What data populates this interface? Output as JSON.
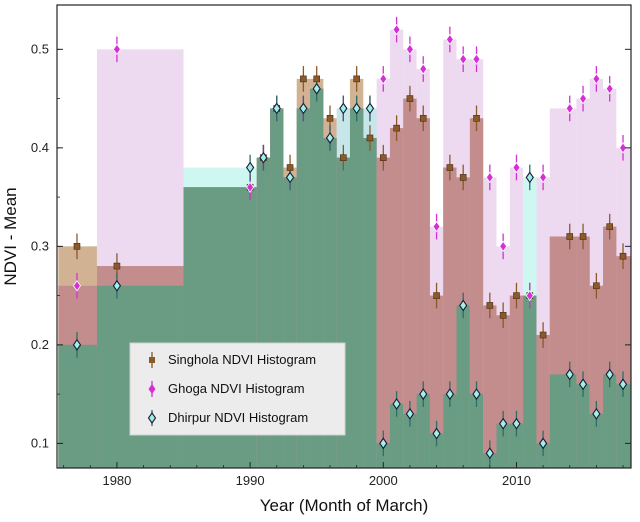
{
  "chart_data": {
    "type": "histogram-step-with-errorbars",
    "xlabel": "Year (Month of March)",
    "ylabel": "NDVI - Mean",
    "xlim": [
      1975.5,
      2018.6
    ],
    "ylim": [
      0.075,
      0.545
    ],
    "xticks": [
      1980,
      1990,
      2000,
      2010
    ],
    "yticks": [
      0.1,
      0.2,
      0.3,
      0.4,
      0.5
    ],
    "legend_position": "lower-left",
    "series": [
      {
        "name": "Singhola NDVI Histogram",
        "fill": "#c9a47f",
        "marker_color": "#8a5a2b",
        "marker": "square",
        "x": [
          1977,
          1980,
          1990,
          1991,
          1992,
          1993,
          1994,
          1995,
          1996,
          1997,
          1998,
          1999,
          2000,
          2001,
          2002,
          2003,
          2004,
          2005,
          2006,
          2007,
          2008,
          2009,
          2010,
          2011,
          2012,
          2014,
          2015,
          2016,
          2017,
          2018
        ],
        "y": [
          0.3,
          0.28,
          0.36,
          0.39,
          0.44,
          0.38,
          0.47,
          0.47,
          0.43,
          0.39,
          0.47,
          0.41,
          0.39,
          0.42,
          0.45,
          0.43,
          0.25,
          0.38,
          0.37,
          0.43,
          0.24,
          0.23,
          0.25,
          0.25,
          0.21,
          0.31,
          0.31,
          0.26,
          0.32,
          0.29
        ],
        "edges": [
          1975.6,
          1978.5,
          1985,
          1990.5,
          1991.5,
          1992.5,
          1993.5,
          1994.5,
          1995.5,
          1996.5,
          1997.5,
          1998.5,
          1999.5,
          2000.5,
          2001.5,
          2002.5,
          2003.5,
          2004.5,
          2005.5,
          2006.5,
          2007.5,
          2008.5,
          2009.5,
          2010.5,
          2011.5,
          2012.5,
          2014.5,
          2015.5,
          2016.5,
          2017.5,
          2018.6
        ]
      },
      {
        "name": "Ghoga NDVI Histogram",
        "fill": "#e3c2e6",
        "marker_color": "#d530d5",
        "marker": "diamond",
        "x": [
          1977,
          1980,
          1990,
          1991,
          1992,
          1993,
          1994,
          1995,
          1996,
          1997,
          1998,
          1999,
          2000,
          2001,
          2002,
          2003,
          2004,
          2005,
          2006,
          2007,
          2008,
          2009,
          2010,
          2011,
          2012,
          2014,
          2015,
          2016,
          2017,
          2018
        ],
        "y": [
          0.26,
          0.5,
          0.36,
          0.39,
          0.44,
          0.37,
          0.44,
          0.46,
          0.41,
          0.44,
          0.44,
          0.44,
          0.47,
          0.52,
          0.5,
          0.48,
          0.32,
          0.51,
          0.49,
          0.49,
          0.37,
          0.3,
          0.38,
          0.25,
          0.37,
          0.44,
          0.45,
          0.47,
          0.46,
          0.4
        ],
        "edges": [
          1975.6,
          1978.5,
          1985,
          1990.5,
          1991.5,
          1992.5,
          1993.5,
          1994.5,
          1995.5,
          1996.5,
          1997.5,
          1998.5,
          1999.5,
          2000.5,
          2001.5,
          2002.5,
          2003.5,
          2004.5,
          2005.5,
          2006.5,
          2007.5,
          2008.5,
          2009.5,
          2010.5,
          2011.5,
          2012.5,
          2014.5,
          2015.5,
          2016.5,
          2017.5,
          2018.6
        ]
      },
      {
        "name": "Dhirpur NDVI Histogram",
        "fill": "#a6f0e6",
        "marker_color": "#1a1a33",
        "marker": "diamond-outline",
        "x": [
          1977,
          1980,
          1990,
          1991,
          1992,
          1993,
          1994,
          1995,
          1996,
          1997,
          1998,
          1999,
          2000,
          2001,
          2002,
          2003,
          2004,
          2005,
          2006,
          2007,
          2008,
          2009,
          2010,
          2011,
          2012,
          2014,
          2015,
          2016,
          2017,
          2018
        ],
        "y": [
          0.2,
          0.26,
          0.38,
          0.39,
          0.44,
          0.37,
          0.44,
          0.46,
          0.41,
          0.44,
          0.44,
          0.44,
          0.1,
          0.14,
          0.13,
          0.15,
          0.11,
          0.15,
          0.24,
          0.15,
          0.09,
          0.12,
          0.12,
          0.37,
          0.1,
          0.17,
          0.16,
          0.13,
          0.17,
          0.16
        ],
        "edges": [
          1975.6,
          1978.5,
          1985,
          1990.5,
          1991.5,
          1992.5,
          1993.5,
          1994.5,
          1995.5,
          1996.5,
          1997.5,
          1998.5,
          1999.5,
          2000.5,
          2001.5,
          2002.5,
          2003.5,
          2004.5,
          2005.5,
          2006.5,
          2007.5,
          2008.5,
          2009.5,
          2010.5,
          2011.5,
          2012.5,
          2014.5,
          2015.5,
          2016.5,
          2017.5,
          2018.6
        ]
      }
    ],
    "error": 0.013,
    "overlap_fills": {
      "singhola_ghoga": "#c08787",
      "singhola_dhirpur": "#6a9c84",
      "all": "#6a9c84"
    }
  }
}
